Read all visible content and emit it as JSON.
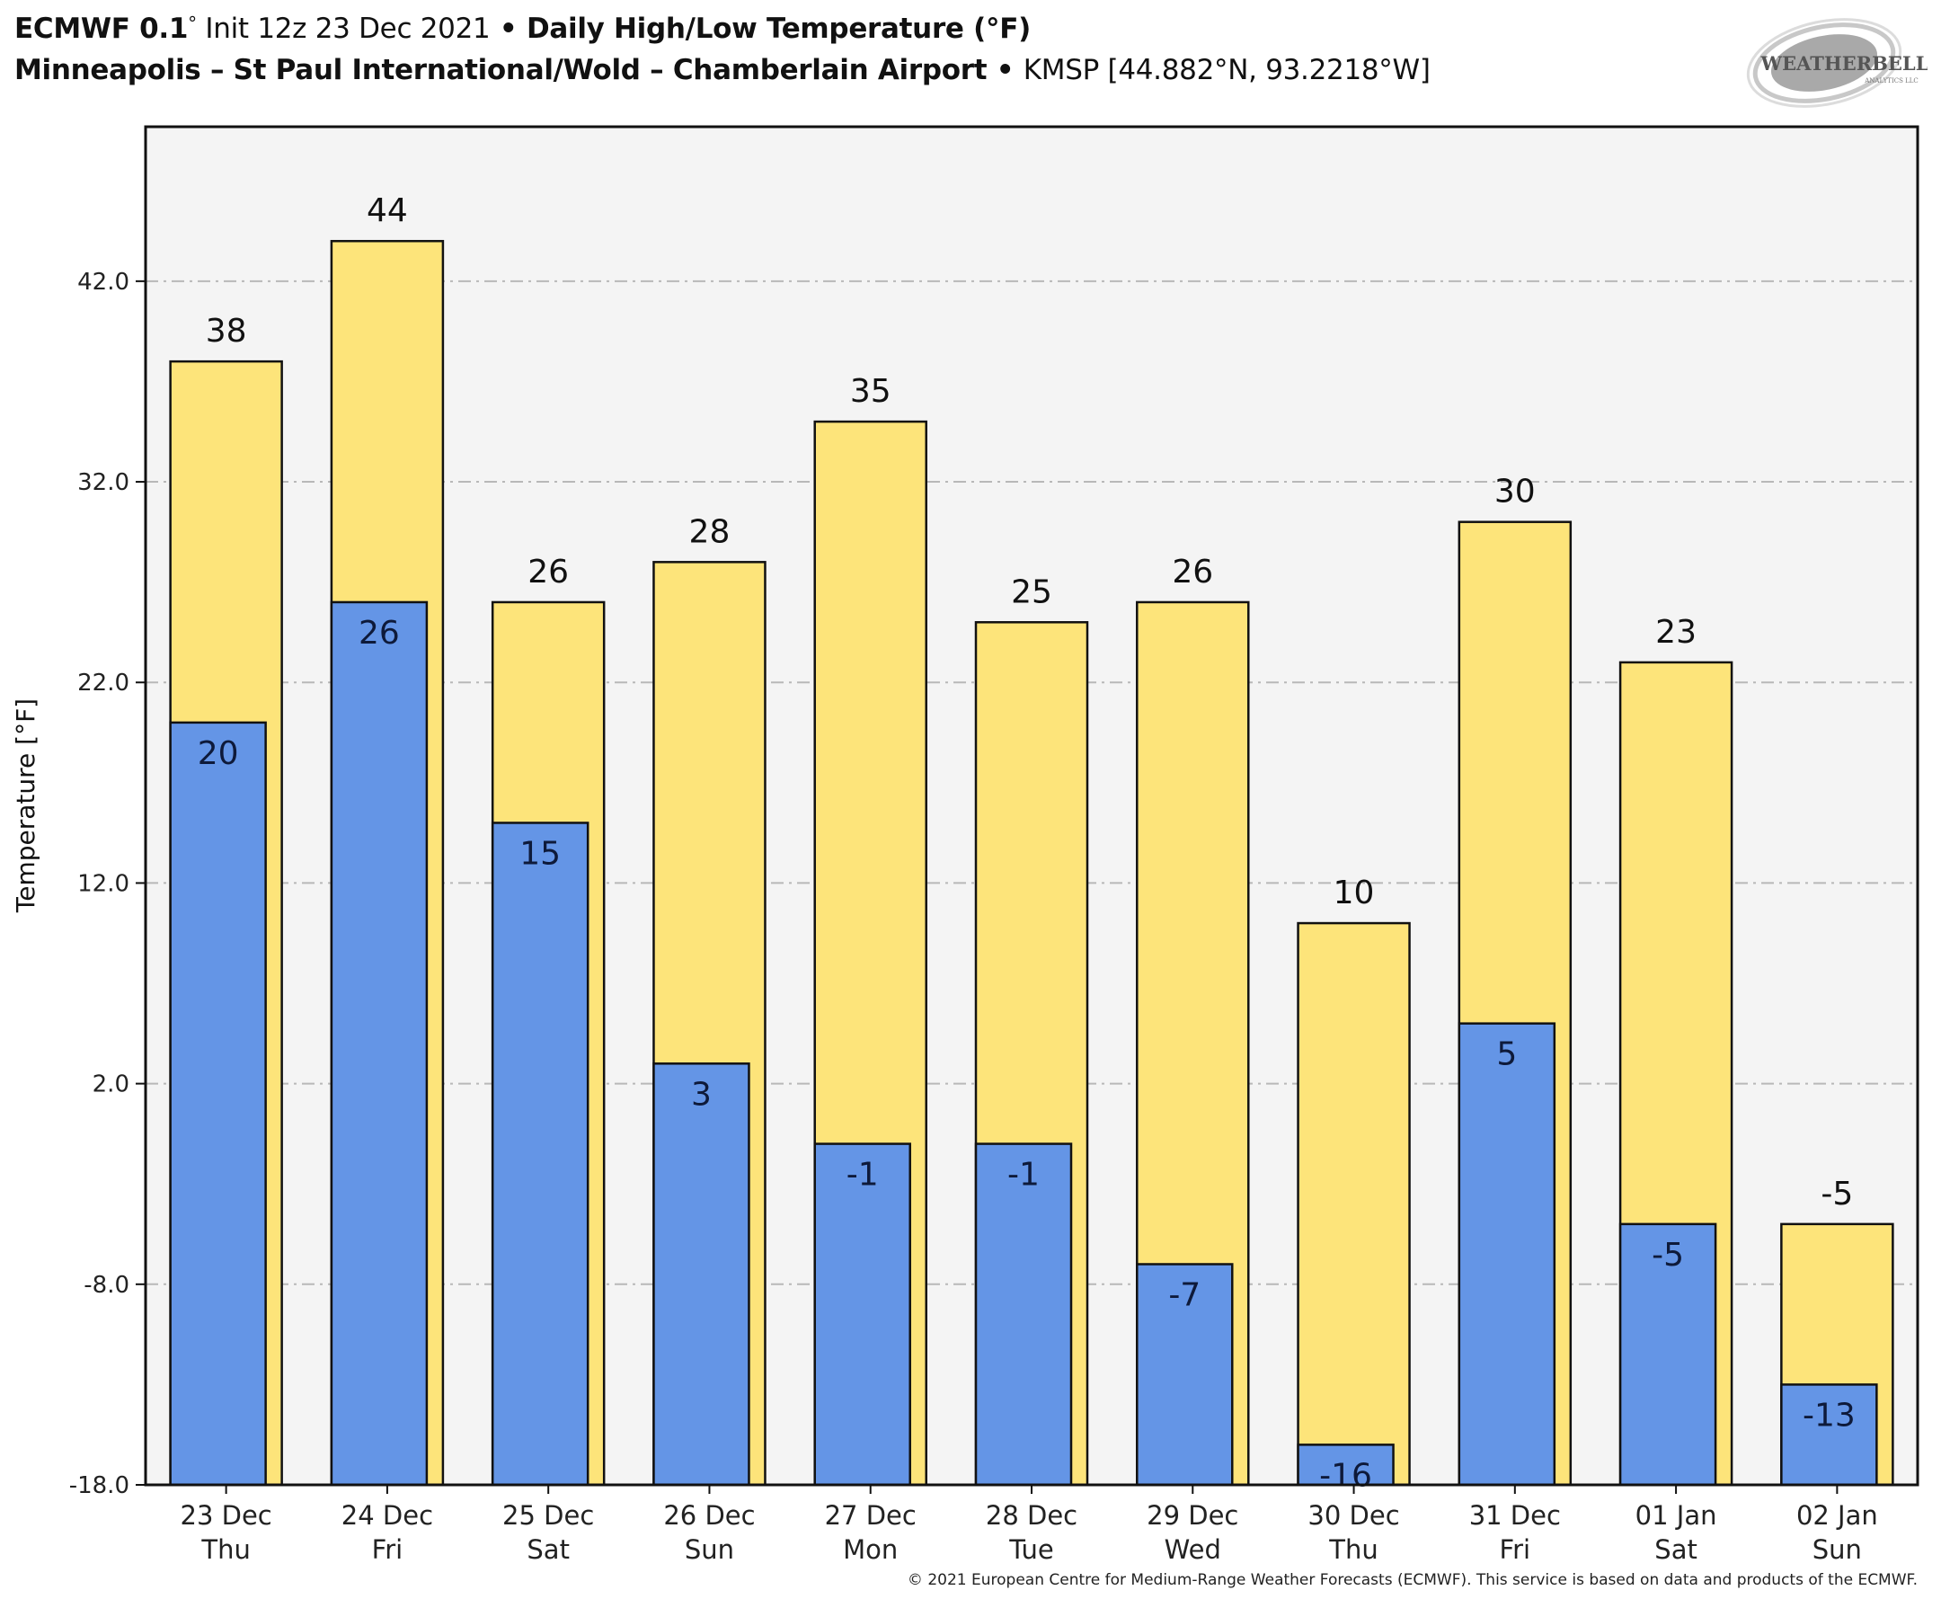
{
  "header": {
    "model": "ECMWF 0.1",
    "model_deg": "°",
    "init": " Init 12z 23 Dec 2021",
    "sep1": " • ",
    "product": "Daily High/Low Temperature (°F)",
    "location": "Minneapolis – St Paul International/Wold – Chamberlain Airport",
    "sep2": " • ",
    "station": "KMSP [44.882°N, 93.2218°W]"
  },
  "logo": {
    "text_main": "WEATHERBELL",
    "text_sub": "ANALYTICS LLC"
  },
  "footer": {
    "copyright": "© 2021 European Centre for Medium-Range Weather Forecasts (ECMWF). This service is based on data and products of the ECMWF."
  },
  "colors": {
    "high": "#fde47a",
    "low": "#6495e6",
    "plot_bg": "#f4f4f4",
    "grid": "#b8b8b8",
    "edge": "#111111"
  },
  "chart_data": {
    "type": "bar",
    "title": "Daily High/Low Temperature (°F)",
    "xlabel": "",
    "ylabel": "Temperature [°F]",
    "ylim": [
      -18,
      49.7
    ],
    "yticks": [
      -18,
      -8,
      2,
      12,
      22,
      32,
      42
    ],
    "ytick_labels": [
      "-18.0",
      "-8.0",
      "2.0",
      "12.0",
      "22.0",
      "32.0",
      "42.0"
    ],
    "grid": true,
    "categories": [
      "23 Dec",
      "24 Dec",
      "25 Dec",
      "26 Dec",
      "27 Dec",
      "28 Dec",
      "29 Dec",
      "30 Dec",
      "31 Dec",
      "01 Jan",
      "02 Jan"
    ],
    "category_days": [
      "Thu",
      "Fri",
      "Sat",
      "Sun",
      "Mon",
      "Tue",
      "Wed",
      "Thu",
      "Fri",
      "Sat",
      "Sun"
    ],
    "series": [
      {
        "name": "High",
        "values": [
          38,
          44,
          26,
          28,
          35,
          25,
          26,
          10,
          30,
          23,
          -5
        ]
      },
      {
        "name": "Low",
        "values": [
          20,
          26,
          15,
          3,
          -1,
          -1,
          -7,
          -16,
          5,
          -5,
          -13
        ]
      }
    ]
  }
}
